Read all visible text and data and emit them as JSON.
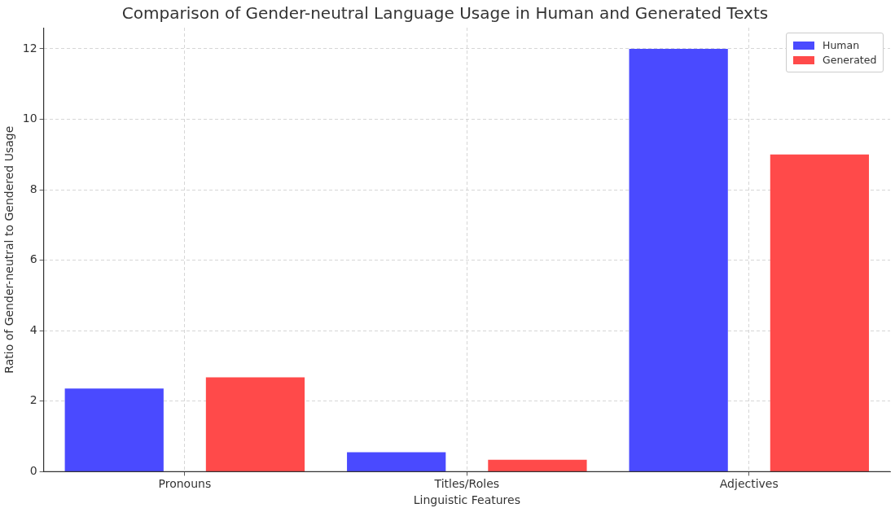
{
  "chart_data": {
    "type": "bar",
    "title": "Comparison of Gender-neutral Language Usage in Human and Generated Texts",
    "xlabel": "Linguistic Features",
    "ylabel": "Ratio of Gender-neutral to Gendered Usage",
    "categories": [
      "Pronouns",
      "Titles/Roles",
      "Adjectives"
    ],
    "series": [
      {
        "name": "Human",
        "color": "#4a4aff",
        "values": [
          2.36,
          0.55,
          12
        ]
      },
      {
        "name": "Generated",
        "color": "#ff4a4a",
        "values": [
          2.68,
          0.34,
          9
        ]
      }
    ],
    "ylim": [
      0,
      12.6
    ],
    "yticks": [
      0,
      2,
      4,
      6,
      8,
      10,
      12
    ],
    "grid": true,
    "legend": "top right"
  }
}
